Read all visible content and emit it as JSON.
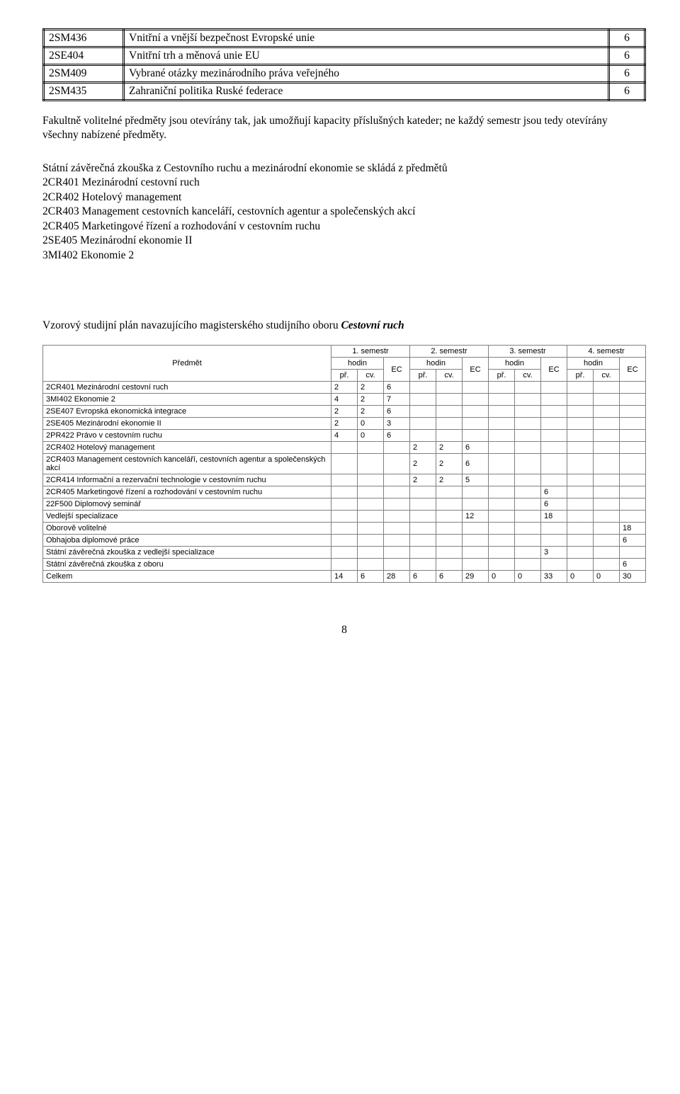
{
  "courses": [
    {
      "code": "2SM436",
      "name": "Vnitřní a vnější bezpečnost Evropské unie",
      "ec": "6"
    },
    {
      "code": "2SE404",
      "name": "Vnitřní trh a měnová unie EU",
      "ec": "6"
    },
    {
      "code": "2SM409",
      "name": "Vybrané otázky mezinárodního práva veřejného",
      "ec": "6"
    },
    {
      "code": "2SM435",
      "name": "Zahraniční politika Ruské federace",
      "ec": "6"
    }
  ],
  "para1": "Fakultně volitelné předměty jsou otevírány tak, jak umožňují kapacity příslušných kateder; ne každý semestr jsou tedy otevírány všechny nabízené předměty.",
  "exam_intro": "Státní závěrečná zkouška z Cestovního ruchu a mezinárodní ekonomie se skládá z předmětů",
  "exam_lines": [
    "2CR401 Mezinárodní cestovní ruch",
    "2CR402 Hotelový management",
    "2CR403 Management cestovních kanceláří, cestovních agentur a společenských akcí",
    "2CR405 Marketingové řízení a rozhodování v cestovním ruchu",
    "2SE405 Mezinárodní ekonomie II",
    "3MI402 Ekonomie 2"
  ],
  "plan_title_pre": "Vzorový studijní plán navazujícího magisterského studijního oboru ",
  "plan_title_em": "Cestovní ruch",
  "headers": {
    "subject": "Předmět",
    "sem": [
      "1. semestr",
      "2. semestr",
      "3. semestr",
      "4. semestr"
    ],
    "hodin": "hodin",
    "ec": "EC",
    "pr": "př.",
    "cv": "cv."
  },
  "rows": [
    {
      "name": "2CR401 Mezinárodní cestovní ruch",
      "v": [
        "2",
        "2",
        "6",
        "",
        "",
        "",
        "",
        "",
        "",
        "",
        "",
        ""
      ]
    },
    {
      "name": "3MI402 Ekonomie 2",
      "v": [
        "4",
        "2",
        "7",
        "",
        "",
        "",
        "",
        "",
        "",
        "",
        "",
        ""
      ]
    },
    {
      "name": "2SE407 Evropská ekonomická integrace",
      "v": [
        "2",
        "2",
        "6",
        "",
        "",
        "",
        "",
        "",
        "",
        "",
        "",
        ""
      ]
    },
    {
      "name": "2SE405 Mezinárodní ekonomie II",
      "v": [
        "2",
        "0",
        "3",
        "",
        "",
        "",
        "",
        "",
        "",
        "",
        "",
        ""
      ]
    },
    {
      "name": "2PR422 Právo v cestovním ruchu",
      "v": [
        "4",
        "0",
        "6",
        "",
        "",
        "",
        "",
        "",
        "",
        "",
        "",
        ""
      ]
    },
    {
      "name": "2CR402 Hotelový management",
      "v": [
        "",
        "",
        "",
        "2",
        "2",
        "6",
        "",
        "",
        "",
        "",
        "",
        ""
      ]
    },
    {
      "name": "2CR403 Management cestovních kanceláří, cestovních agentur a společenských akcí",
      "v": [
        "",
        "",
        "",
        "2",
        "2",
        "6",
        "",
        "",
        "",
        "",
        "",
        ""
      ]
    },
    {
      "name": "2CR414 Informační a rezervační technologie v cestovním ruchu",
      "v": [
        "",
        "",
        "",
        "2",
        "2",
        "5",
        "",
        "",
        "",
        "",
        "",
        ""
      ]
    },
    {
      "name": "2CR405 Marketingové řízení a rozhodování v cestovním ruchu",
      "v": [
        "",
        "",
        "",
        "",
        "",
        "",
        "",
        "",
        "6",
        "",
        "",
        ""
      ]
    },
    {
      "name": "22F500 Diplomový seminář",
      "v": [
        "",
        "",
        "",
        "",
        "",
        "",
        "",
        "",
        "6",
        "",
        "",
        ""
      ]
    },
    {
      "name": "Vedlejší specializace",
      "v": [
        "",
        "",
        "",
        "",
        "",
        "12",
        "",
        "",
        "18",
        "",
        "",
        ""
      ]
    },
    {
      "name": "Oborově volitelné",
      "v": [
        "",
        "",
        "",
        "",
        "",
        "",
        "",
        "",
        "",
        "",
        "",
        "18"
      ]
    },
    {
      "name": "Obhajoba diplomové práce",
      "v": [
        "",
        "",
        "",
        "",
        "",
        "",
        "",
        "",
        "",
        "",
        "",
        "6"
      ]
    },
    {
      "name": "Státní závěrečná zkouška z vedlejší specializace",
      "v": [
        "",
        "",
        "",
        "",
        "",
        "",
        "",
        "",
        "3",
        "",
        "",
        ""
      ]
    },
    {
      "name": "Státní závěrečná zkouška z oboru",
      "v": [
        "",
        "",
        "",
        "",
        "",
        "",
        "",
        "",
        "",
        "",
        "",
        "6"
      ]
    },
    {
      "name": "Celkem",
      "v": [
        "14",
        "6",
        "28",
        "6",
        "6",
        "29",
        "0",
        "0",
        "33",
        "0",
        "0",
        "30"
      ]
    }
  ],
  "page_num": "8"
}
